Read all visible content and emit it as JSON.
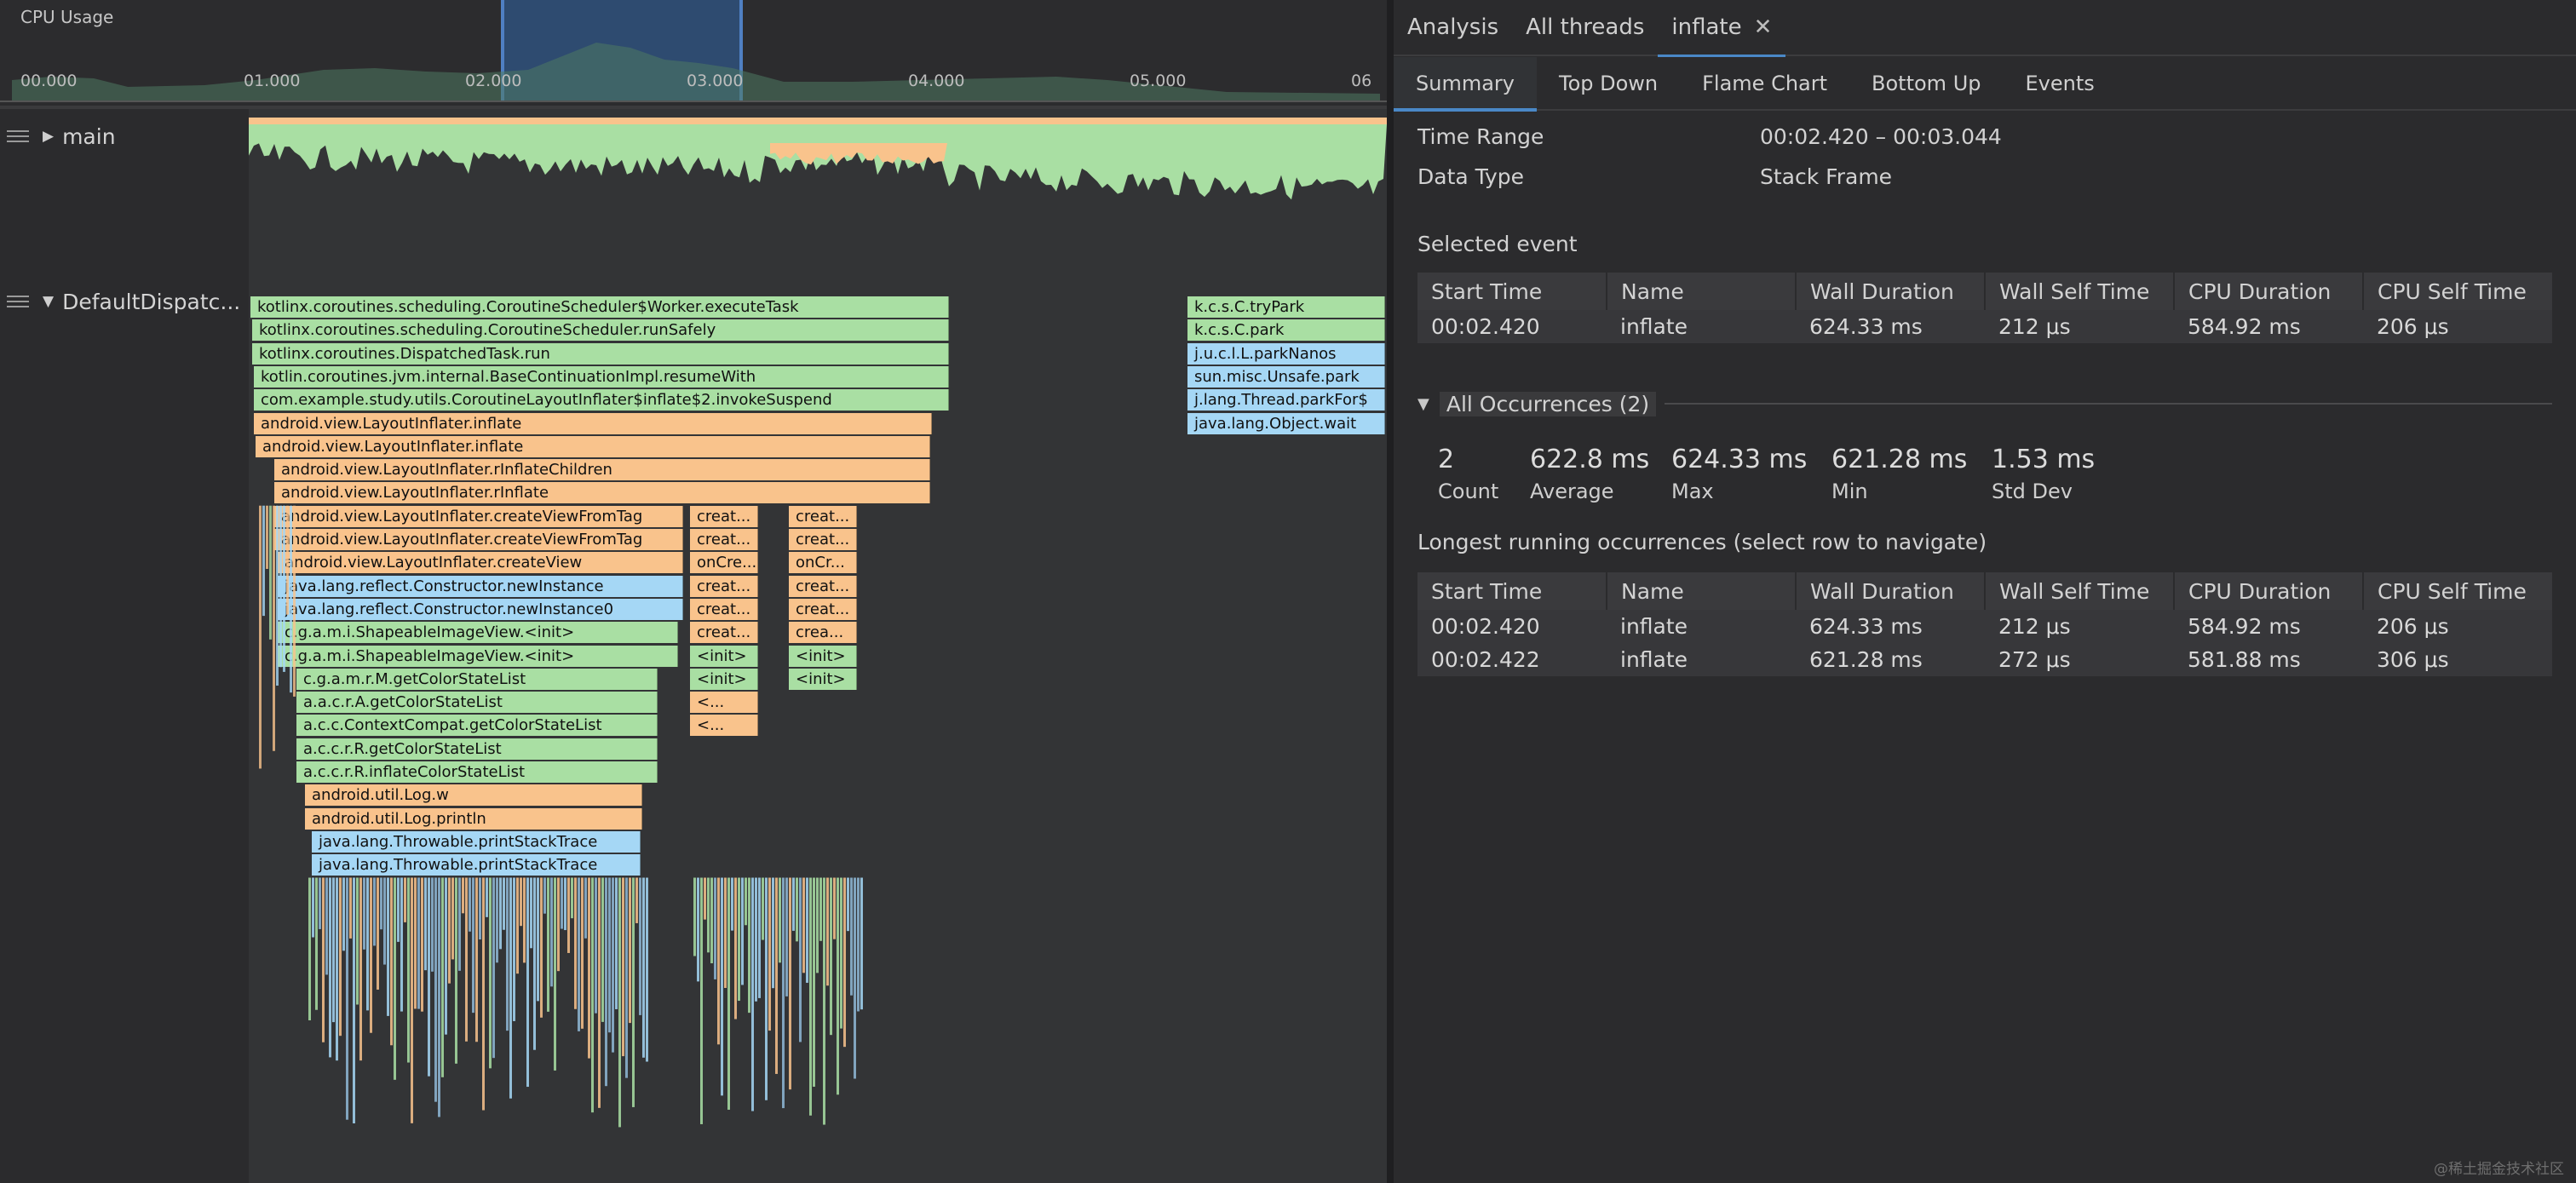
{
  "cpu_usage": {
    "label": "CPU Usage",
    "ticks": [
      "00.000",
      "01.000",
      "02.000",
      "03.000",
      "04.000",
      "05.000",
      "06"
    ]
  },
  "threads": {
    "main": "main",
    "dispatcher": "DefaultDispatc..."
  },
  "flame_frames": [
    {
      "label": "kotlinx.coroutines.scheduling.CoroutineScheduler$Worker.executeTask",
      "color": "green"
    },
    {
      "label": "kotlinx.coroutines.scheduling.CoroutineScheduler.runSafely",
      "color": "green"
    },
    {
      "label": "kotlinx.coroutines.DispatchedTask.run",
      "color": "green"
    },
    {
      "label": "kotlin.coroutines.jvm.internal.BaseContinuationImpl.resumeWith",
      "color": "green"
    },
    {
      "label": "com.example.study.utils.CoroutineLayoutInflater$inflate$2.invokeSuspend",
      "color": "green"
    },
    {
      "label": "android.view.LayoutInflater.inflate",
      "color": "orange"
    },
    {
      "label": "android.view.LayoutInflater.inflate",
      "color": "orange"
    },
    {
      "label": "android.view.LayoutInflater.rInflateChildren",
      "color": "orange"
    },
    {
      "label": "android.view.LayoutInflater.rInflate",
      "color": "orange"
    },
    {
      "label": "android.view.LayoutInflater.createViewFromTag",
      "color": "orange"
    },
    {
      "label": "android.view.LayoutInflater.createViewFromTag",
      "color": "orange"
    },
    {
      "label": "android.view.LayoutInflater.createView",
      "color": "orange"
    },
    {
      "label": "java.lang.reflect.Constructor.newInstance",
      "color": "blue"
    },
    {
      "label": "java.lang.reflect.Constructor.newInstance0",
      "color": "blue"
    },
    {
      "label": "c.g.a.m.i.ShapeableImageView.<init>",
      "color": "green"
    },
    {
      "label": "c.g.a.m.i.ShapeableImageView.<init>",
      "color": "green"
    },
    {
      "label": "c.g.a.m.r.M.getColorStateList",
      "color": "green"
    },
    {
      "label": "a.a.c.r.A.getColorStateList",
      "color": "green"
    },
    {
      "label": "a.c.c.ContextCompat.getColorStateList",
      "color": "green"
    },
    {
      "label": "a.c.c.r.R.getColorStateList",
      "color": "green"
    },
    {
      "label": "a.c.c.r.R.inflateColorStateList",
      "color": "green"
    },
    {
      "label": "android.util.Log.w",
      "color": "orange"
    },
    {
      "label": "android.util.Log.println",
      "color": "orange"
    },
    {
      "label": "java.lang.Throwable.printStackTrace",
      "color": "blue"
    },
    {
      "label": "java.lang.Throwable.printStackTrace",
      "color": "blue"
    }
  ],
  "side_frames_a": [
    "creat...",
    "creat...",
    "onCre...",
    "creat...",
    "creat...",
    "creat...",
    "<init>",
    "<init>",
    "<...",
    "<..."
  ],
  "side_frames_b": [
    "creat...",
    "creat...",
    "onCr...",
    "creat...",
    "creat...",
    "crea...",
    "<init>",
    "<init>"
  ],
  "park_frames": [
    {
      "label": "k.c.s.C.tryPark",
      "color": "green"
    },
    {
      "label": "k.c.s.C.park",
      "color": "green"
    },
    {
      "label": "j.u.c.l.L.parkNanos",
      "color": "blue"
    },
    {
      "label": "sun.misc.Unsafe.park",
      "color": "blue"
    },
    {
      "label": "j.lang.Thread.parkFor$",
      "color": "blue"
    },
    {
      "label": "java.lang.Object.wait",
      "color": "blue"
    }
  ],
  "top_tabs": {
    "analysis": "Analysis",
    "all_threads": "All threads",
    "inflate": "inflate"
  },
  "sub_tabs": {
    "summary": "Summary",
    "top_down": "Top Down",
    "flame_chart": "Flame Chart",
    "bottom_up": "Bottom Up",
    "events": "Events"
  },
  "summary": {
    "time_range_label": "Time Range",
    "time_range_value": "00:02.420 – 00:03.044",
    "data_type_label": "Data Type",
    "data_type_value": "Stack Frame",
    "selected_event_title": "Selected event"
  },
  "columns": [
    "Start Time",
    "Name",
    "Wall Duration",
    "Wall Self Time",
    "CPU Duration",
    "CPU Self Time"
  ],
  "selected_event_row": [
    "00:02.420",
    "inflate",
    "624.33 ms",
    "212 μs",
    "584.92 ms",
    "206 μs"
  ],
  "occurrences": {
    "header": "All Occurrences (2)",
    "count_value": "2",
    "count_label": "Count",
    "average_value": "622.8 ms",
    "average_label": "Average",
    "max_value": "624.33 ms",
    "max_label": "Max",
    "min_value": "621.28 ms",
    "min_label": "Min",
    "stddev_value": "1.53 ms",
    "stddev_label": "Std Dev"
  },
  "longest_title": "Longest running occurrences (select row to navigate)",
  "longest_rows": [
    [
      "00:02.420",
      "inflate",
      "624.33 ms",
      "212 μs",
      "584.92 ms",
      "206 μs"
    ],
    [
      "00:02.422",
      "inflate",
      "621.28 ms",
      "272 μs",
      "581.88 ms",
      "306 μs"
    ]
  ],
  "watermark": "@稀土掘金技术社区",
  "colors": {
    "green": "#a9dfa3",
    "orange": "#f9c38c",
    "blue": "#a5d7f5",
    "selection": "#2f4f78",
    "accent": "#4a88c7"
  }
}
